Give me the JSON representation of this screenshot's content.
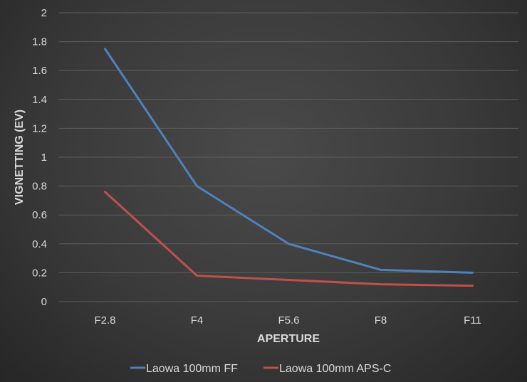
{
  "chart_data": {
    "type": "line",
    "categories": [
      "F2.8",
      "F4",
      "F5.6",
      "F8",
      "F11"
    ],
    "series": [
      {
        "name": "Laowa 100mm FF",
        "color": "#4f81bd",
        "values": [
          1.75,
          0.8,
          0.4,
          0.22,
          0.2
        ]
      },
      {
        "name": "Laowa 100mm APS-C",
        "color": "#c0504d",
        "values": [
          0.76,
          0.18,
          0.15,
          0.12,
          0.11
        ]
      }
    ],
    "title": "",
    "xlabel": "APERTURE",
    "ylabel": "VIGNETTING (EV)",
    "ylim": [
      0,
      2
    ],
    "yticks": [
      "0",
      "0.2",
      "0.4",
      "0.6",
      "0.8",
      "1",
      "1.2",
      "1.4",
      "1.6",
      "1.8",
      "2"
    ],
    "grid": true,
    "legend_position": "bottom"
  }
}
